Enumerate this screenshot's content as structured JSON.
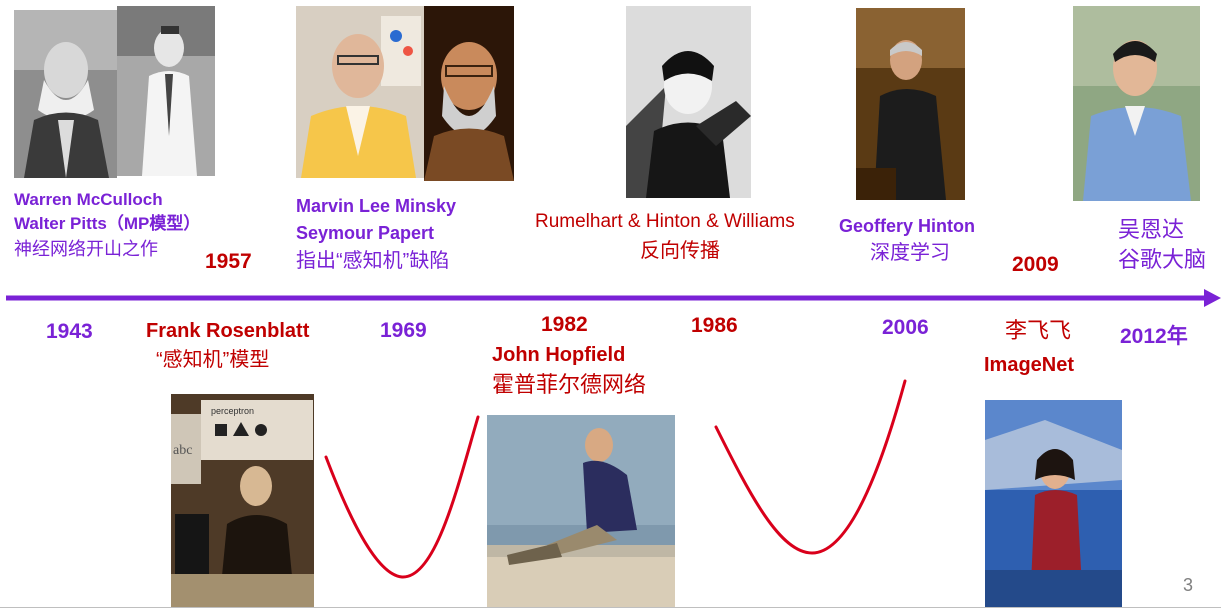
{
  "colors": {
    "purple": "#7a22d6",
    "red": "#c00000",
    "axis": "#7a22d6",
    "curve": "#d9001b"
  },
  "events": {
    "mp": {
      "line1": "Warren McCulloch",
      "line2": "Walter Pitts（MP模型）",
      "line3": "神经网络开山之作",
      "year": "1943"
    },
    "perceptron": {
      "year": "1957",
      "line1": "Frank Rosenblatt",
      "line2": "“感知机”模型"
    },
    "minsky": {
      "line1": "Marvin Lee Minsky",
      "line2": "Seymour Papert",
      "line3": "指出“感知机”缺陷",
      "year": "1969"
    },
    "hopfield": {
      "year": "1982",
      "line1": "John Hopfield",
      "line2": "霍普菲尔德网络"
    },
    "bp": {
      "line1": "Rumelhart & Hinton & Williams",
      "line2": "反向传播",
      "year": "1986"
    },
    "hinton": {
      "line1": "Geoffery Hinton",
      "line2": "深度学习",
      "year": "2006"
    },
    "imagenet": {
      "year": "2009",
      "line1": "李飞飞",
      "line2": "ImageNet"
    },
    "ng": {
      "line1": "吴恩达",
      "line2": "谷歌大脑",
      "year": "2012年"
    }
  },
  "photos": {
    "perceptron_caption": "perceptron",
    "perceptron_board": "abc"
  },
  "slide_number": "3"
}
